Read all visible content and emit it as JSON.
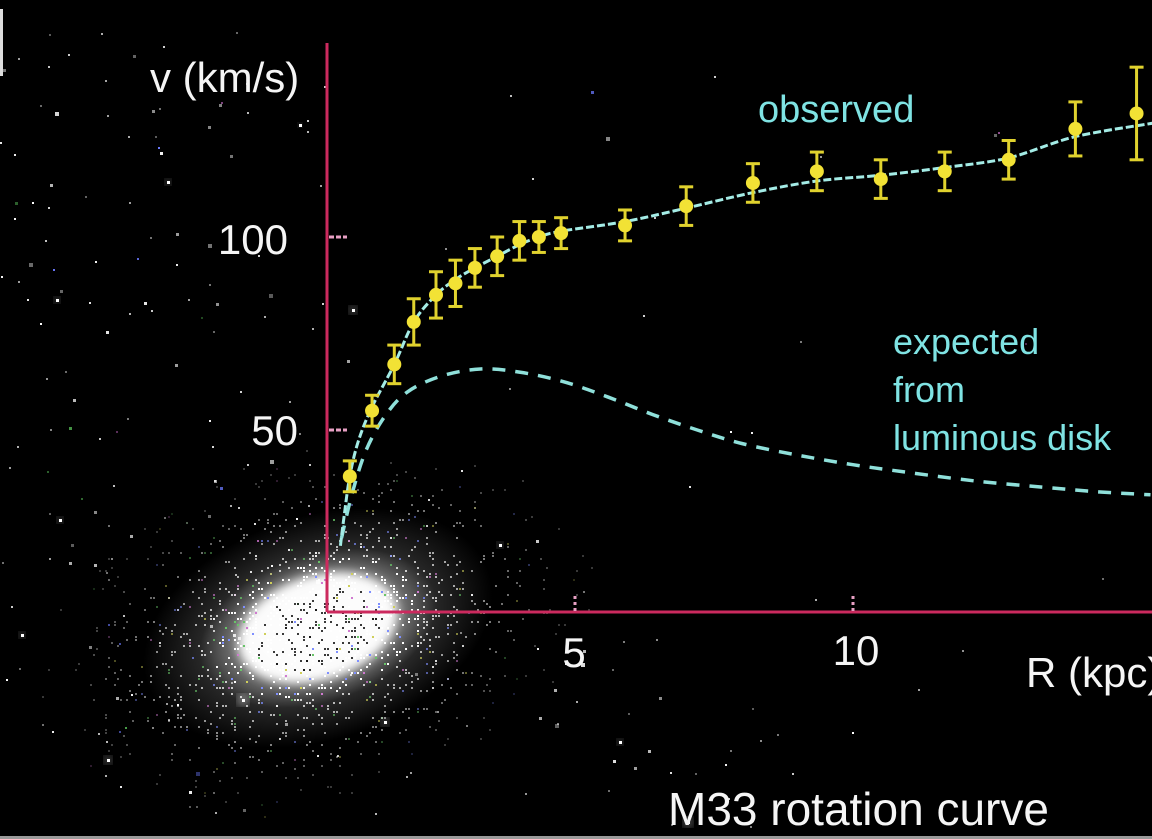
{
  "figure": {
    "title": "M33 rotation curve",
    "y_axis_label": "v (km/s)",
    "x_axis_label": "R (kpc)",
    "observed_label": "observed",
    "expected_label_lines": [
      "expected",
      "from",
      "luminous disk"
    ]
  },
  "colors": {
    "background": "#000000",
    "axis_pink": "#cc2a5e",
    "tick_pink": "#e8a0c4",
    "curve_cyan": "#a4ece6",
    "dashed_cyan": "#8fe0da",
    "label_cyan": "#7fe3e3",
    "marker_yellow": "#f2e235",
    "errorbar_yellow": "#e0d22e",
    "text_white": "#f5f5f5"
  },
  "chart_data": {
    "type": "line",
    "title": "M33 rotation curve",
    "xlabel": "R (kpc)",
    "ylabel": "v (km/s)",
    "xlim": [
      0,
      15.5
    ],
    "ylim": [
      0,
      150
    ],
    "grid": false,
    "legend_position": "inline-annotations",
    "x_ticks": [
      {
        "value": 5,
        "label": "5"
      },
      {
        "value": 10,
        "label": "10"
      }
    ],
    "y_ticks": [
      {
        "value": 100,
        "label": "100"
      },
      {
        "value": 50,
        "label": "50"
      }
    ],
    "series": [
      {
        "name": "observed",
        "style": "solid line, yellow circle markers with error bars",
        "points_R_v_err": [
          [
            0.95,
            38,
            4
          ],
          [
            1.35,
            55,
            4
          ],
          [
            1.75,
            67,
            5
          ],
          [
            2.1,
            78,
            6
          ],
          [
            2.5,
            85,
            6
          ],
          [
            2.85,
            88,
            6
          ],
          [
            3.2,
            92,
            5
          ],
          [
            3.6,
            95,
            5
          ],
          [
            4.0,
            99,
            5
          ],
          [
            4.35,
            100,
            4
          ],
          [
            4.75,
            101,
            4
          ],
          [
            5.9,
            103,
            4
          ],
          [
            7.0,
            108,
            5
          ],
          [
            8.2,
            114,
            5
          ],
          [
            9.35,
            117,
            5
          ],
          [
            10.5,
            115,
            5
          ],
          [
            11.65,
            117,
            5
          ],
          [
            12.8,
            120,
            5
          ],
          [
            14.0,
            128,
            7
          ],
          [
            15.1,
            132,
            12
          ]
        ],
        "line_R_v": [
          [
            0.78,
            20
          ],
          [
            0.85,
            28
          ],
          [
            0.95,
            38
          ],
          [
            1.1,
            47
          ],
          [
            1.35,
            56
          ],
          [
            1.75,
            67
          ],
          [
            2.1,
            78
          ],
          [
            2.5,
            85
          ],
          [
            2.85,
            89
          ],
          [
            3.2,
            92
          ],
          [
            3.6,
            95
          ],
          [
            4.0,
            98
          ],
          [
            4.35,
            100
          ],
          [
            4.75,
            101.5
          ],
          [
            5.9,
            104
          ],
          [
            7.0,
            107.5
          ],
          [
            8.2,
            111.5
          ],
          [
            9.35,
            114.5
          ],
          [
            10.5,
            116
          ],
          [
            11.65,
            118
          ],
          [
            12.8,
            120.5
          ],
          [
            14.0,
            126
          ],
          [
            15.4,
            129.5
          ]
        ]
      },
      {
        "name": "expected from luminous disk",
        "style": "dashed line",
        "line_R_v": [
          [
            0.8,
            22
          ],
          [
            1.0,
            34
          ],
          [
            1.25,
            45
          ],
          [
            1.6,
            54
          ],
          [
            2.0,
            60
          ],
          [
            2.6,
            64
          ],
          [
            3.3,
            65.8
          ],
          [
            4.0,
            65
          ],
          [
            4.8,
            62.5
          ],
          [
            5.6,
            58.5
          ],
          [
            6.4,
            54
          ],
          [
            7.2,
            50
          ],
          [
            8.0,
            46.5
          ],
          [
            9.0,
            43.5
          ],
          [
            10.0,
            41
          ],
          [
            11.0,
            39
          ],
          [
            12.2,
            36.8
          ],
          [
            13.4,
            35.2
          ],
          [
            14.4,
            34
          ],
          [
            15.35,
            33.2
          ]
        ]
      }
    ],
    "annotations": [
      {
        "text": "observed",
        "color": "cyan",
        "near": "upper part of solid curve"
      },
      {
        "text": "expected from luminous disk",
        "color": "cyan",
        "near": "right of dashed curve"
      }
    ],
    "background_image": "dithered photograph of galaxy M33 at lower left around the origin, with scattered stars"
  }
}
